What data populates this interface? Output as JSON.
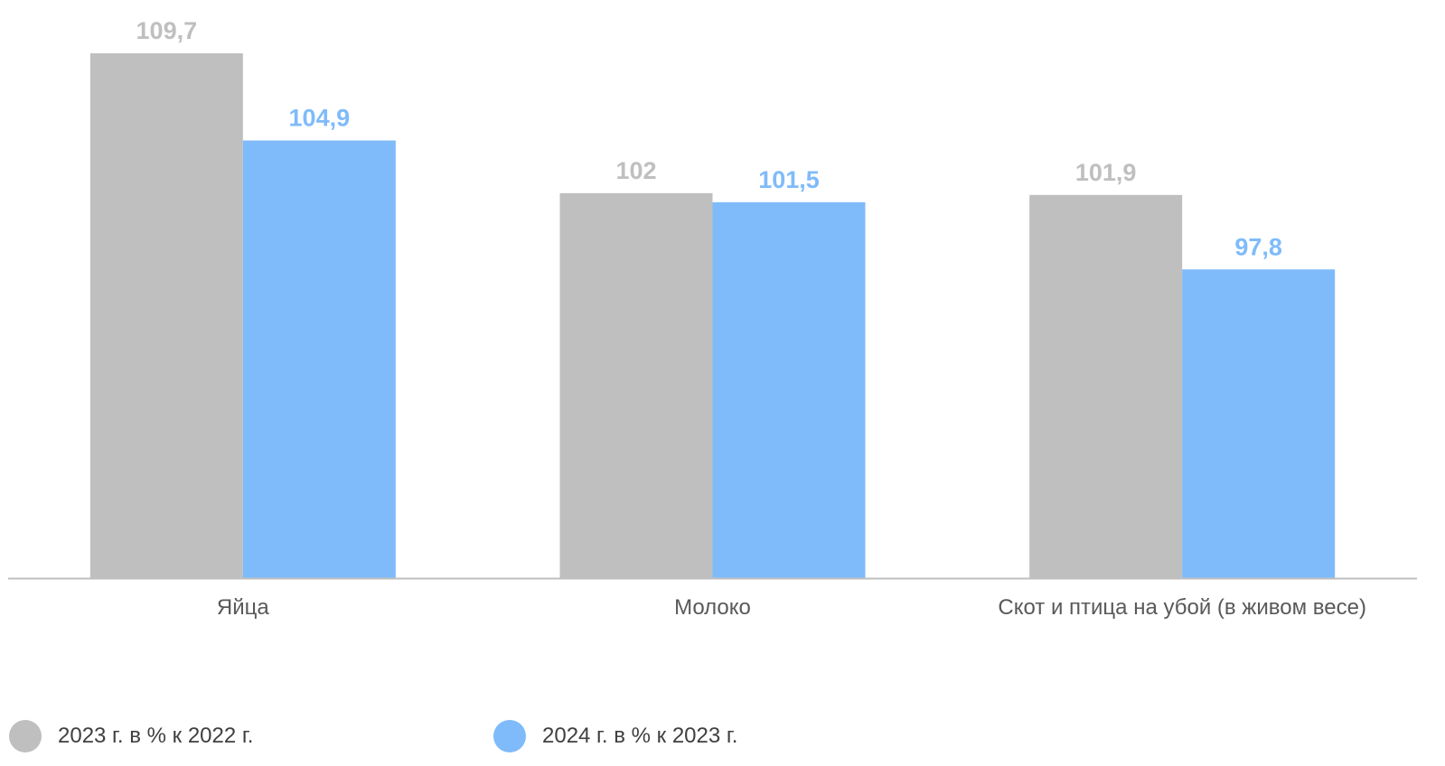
{
  "chart_data": {
    "type": "bar",
    "categories": [
      "Яйца",
      "Молоко",
      "Скот и птица на убой (в живом весе)"
    ],
    "series": [
      {
        "name": "2023 г. в % к 2022 г.",
        "values": [
          109.7,
          102,
          101.9
        ],
        "labels": [
          "109,7",
          "102",
          "101,9"
        ],
        "color": "#bfbfbf"
      },
      {
        "name": "2024 г. в % к 2023 г.",
        "values": [
          104.9,
          101.5,
          97.8
        ],
        "labels": [
          "104,9",
          "101,5",
          "97,8"
        ],
        "color": "#7fbbfa"
      }
    ],
    "ylim": [
      80.8,
      110
    ],
    "grid": false,
    "legend_position": "bottom-left"
  },
  "colors": {
    "axis": "#bfbfbf",
    "category_text": "#595959",
    "legend_text": "#404040"
  }
}
